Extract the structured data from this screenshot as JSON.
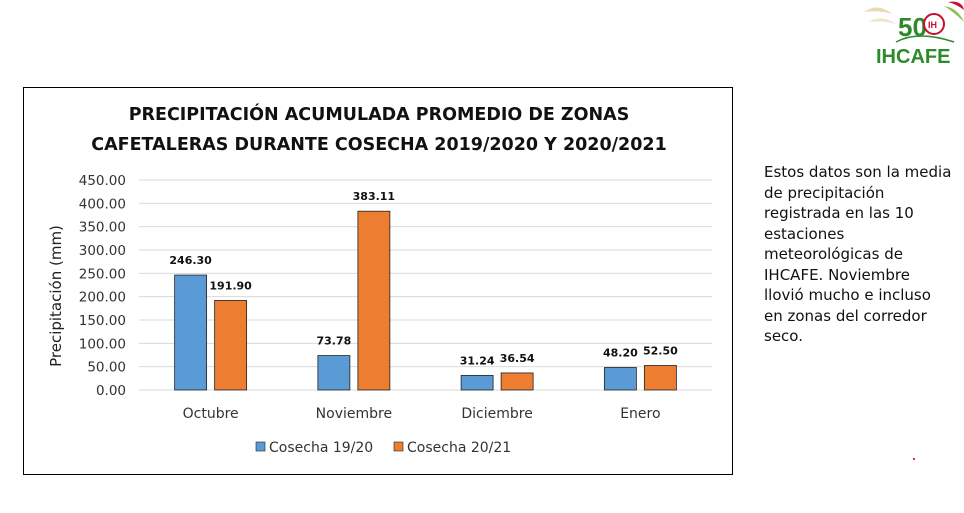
{
  "logo": {
    "text": "IHCAFE",
    "anniversary_mark": "50",
    "seal_text": "IH"
  },
  "side_note": "Estos datos son la media de precipitación registrada en las 10 estaciones meteorológicas de IHCAFE. Noviembre llovió mucho e incluso en zonas del corredor seco.",
  "colors": {
    "series1": "#5b9bd5",
    "series2": "#ed7d31",
    "grid": "#d9d9d9",
    "logo_green": "#2f8a2c"
  },
  "chart_data": {
    "type": "bar",
    "title_lines": [
      "PRECIPITACIÓN ACUMULADA PROMEDIO DE ZONAS",
      "CAFETALERAS DURANTE COSECHA 2019/2020 Y 2020/2021"
    ],
    "xlabel": "",
    "ylabel": "Precipitación (mm)",
    "ylim": [
      0,
      450
    ],
    "yticks": [
      "0.00",
      "50.00",
      "100.00",
      "150.00",
      "200.00",
      "250.00",
      "300.00",
      "350.00",
      "400.00",
      "450.00"
    ],
    "categories": [
      "Octubre",
      "Noviembre",
      "Diciembre",
      "Enero"
    ],
    "series": [
      {
        "name": "Cosecha 19/20",
        "values": [
          246.3,
          73.78,
          31.24,
          48.2
        ],
        "labels": [
          "246.30",
          "73.78",
          "31.24",
          "48.20"
        ]
      },
      {
        "name": "Cosecha 20/21",
        "values": [
          191.9,
          383.11,
          36.54,
          52.5
        ],
        "labels": [
          "191.90",
          "383.11",
          "36.54",
          "52.50"
        ]
      }
    ],
    "grid": true,
    "legend": "bottom"
  }
}
